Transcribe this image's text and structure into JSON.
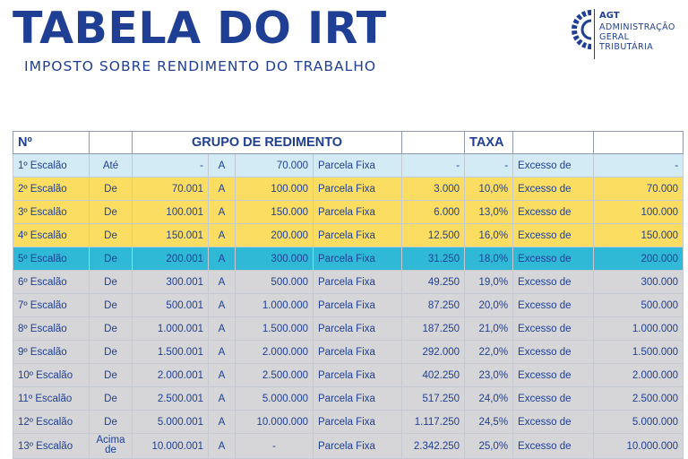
{
  "header": {
    "title": "TABELA DO IRT",
    "subtitle": "IMPOSTO SOBRE RENDIMENTO DO TRABALHO"
  },
  "logo": {
    "abbr": "AGT",
    "line1": "ADMINISTRAÇÃO",
    "line2": "GERAL",
    "line3": "TRIBUTÁRIA",
    "color": "#1f3f95"
  },
  "table": {
    "header": {
      "no": "Nº",
      "group": "GRUPO DE REDIMENTO",
      "rate": "TAXA"
    },
    "rows": [
      {
        "scale": "1º Escalão",
        "from_word": "Até",
        "from": "-",
        "a": "A",
        "to": "70.000",
        "parcela": "Parcela Fixa",
        "fixed": "-",
        "rate": "-",
        "excess": "Excesso de",
        "excess_value": "-",
        "band": "blue"
      },
      {
        "scale": "2º Escalão",
        "from_word": "De",
        "from": "70.001",
        "a": "A",
        "to": "100.000",
        "parcela": "Parcela Fixa",
        "fixed": "3.000",
        "rate": "10,0%",
        "excess": "Excesso de",
        "excess_value": "70.000",
        "band": "yellow"
      },
      {
        "scale": "3º Escalão",
        "from_word": "De",
        "from": "100.001",
        "a": "A",
        "to": "150.000",
        "parcela": "Parcela Fixa",
        "fixed": "6.000",
        "rate": "13,0%",
        "excess": "Excesso de",
        "excess_value": "100.000",
        "band": "yellow"
      },
      {
        "scale": "4º Escalão",
        "from_word": "De",
        "from": "150.001",
        "a": "A",
        "to": "200.000",
        "parcela": "Parcela Fixa",
        "fixed": "12.500",
        "rate": "16,0%",
        "excess": "Excesso de",
        "excess_value": "150.000",
        "band": "yellow"
      },
      {
        "scale": "5º Escalão",
        "from_word": "De",
        "from": "200.001",
        "a": "A",
        "to": "300.000",
        "parcela": "Parcela Fixa",
        "fixed": "31.250",
        "rate": "18,0%",
        "excess": "Excesso de",
        "excess_value": "200.000",
        "band": "cyan"
      },
      {
        "scale": "6º Escalão",
        "from_word": "De",
        "from": "300.001",
        "a": "A",
        "to": "500.000",
        "parcela": "Parcela Fixa",
        "fixed": "49.250",
        "rate": "19,0%",
        "excess": "Excesso de",
        "excess_value": "300.000",
        "band": "gray"
      },
      {
        "scale": "7º Escalão",
        "from_word": "De",
        "from": "500.001",
        "a": "A",
        "to": "1.000.000",
        "parcela": "Parcela Fixa",
        "fixed": "87.250",
        "rate": "20,0%",
        "excess": "Excesso de",
        "excess_value": "500.000",
        "band": "gray"
      },
      {
        "scale": "8º Escalão",
        "from_word": "De",
        "from": "1.000.001",
        "a": "A",
        "to": "1.500.000",
        "parcela": "Parcela Fixa",
        "fixed": "187.250",
        "rate": "21,0%",
        "excess": "Excesso de",
        "excess_value": "1.000.000",
        "band": "gray"
      },
      {
        "scale": "9º Escalão",
        "from_word": "De",
        "from": "1.500.001",
        "a": "A",
        "to": "2.000.000",
        "parcela": "Parcela Fixa",
        "fixed": "292.000",
        "rate": "22,0%",
        "excess": "Excesso de",
        "excess_value": "1.500.000",
        "band": "gray"
      },
      {
        "scale": "10º Escalão",
        "from_word": "De",
        "from": "2.000.001",
        "a": "A",
        "to": "2.500.000",
        "parcela": "Parcela Fixa",
        "fixed": "402.250",
        "rate": "23,0%",
        "excess": "Excesso de",
        "excess_value": "2.000.000",
        "band": "gray"
      },
      {
        "scale": "11º Escalão",
        "from_word": "De",
        "from": "2.500.001",
        "a": "A",
        "to": "5.000.000",
        "parcela": "Parcela Fixa",
        "fixed": "517.250",
        "rate": "24,0%",
        "excess": "Excesso de",
        "excess_value": "2.500.000",
        "band": "gray"
      },
      {
        "scale": "12º Escalão",
        "from_word": "De",
        "from": "5.000.001",
        "a": "A",
        "to": "10.000.000",
        "parcela": "Parcela Fixa",
        "fixed": "1.117.250",
        "rate": "24,5%",
        "excess": "Excesso de",
        "excess_value": "5.000.000",
        "band": "gray"
      },
      {
        "scale": "13º Escalão",
        "from_word": "Acima de",
        "from": "10.000.001",
        "a": "A",
        "to": "-",
        "parcela": "Parcela Fixa",
        "fixed": "2.342.250",
        "rate": "25,0%",
        "excess": "Excesso de",
        "excess_value": "10.000.000",
        "band": "gray"
      }
    ]
  },
  "colors": {
    "title": "#1f3f95",
    "row_blue": "#d3ebf5",
    "row_yellow": "#fadd61",
    "row_cyan": "#2fb9d6",
    "row_gray": "#d6d6d8"
  }
}
